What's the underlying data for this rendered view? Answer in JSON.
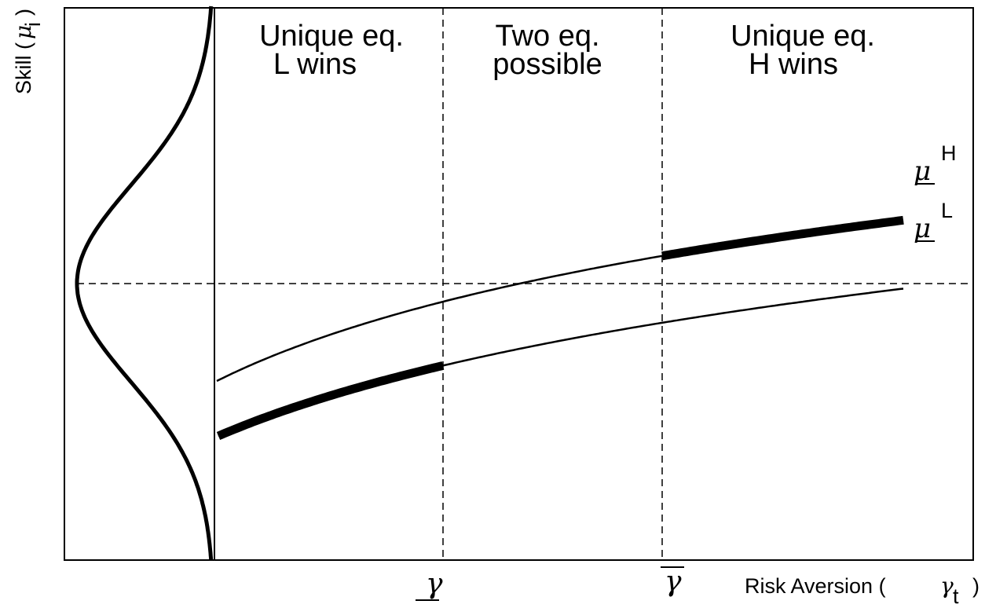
{
  "diagram": {
    "x_axis_label": "Risk Aversion (",
    "x_axis_symbol": "γ",
    "x_axis_subscript": "t",
    "x_axis_close": ")",
    "y_axis_label": "Skill (",
    "y_axis_symbol": "μ",
    "y_axis_subscript": "i",
    "y_axis_close": ")",
    "regions": [
      {
        "line1": "Unique eq.",
        "line2": "L wins"
      },
      {
        "line1": "Two eq.",
        "line2": "possible"
      },
      {
        "line1": "Unique eq.",
        "line2": "H wins"
      }
    ],
    "threshold_low": "γ",
    "threshold_high": "γ",
    "curves": [
      {
        "symbol": "μ",
        "superscript": "H"
      },
      {
        "symbol": "μ",
        "superscript": "L"
      }
    ]
  }
}
